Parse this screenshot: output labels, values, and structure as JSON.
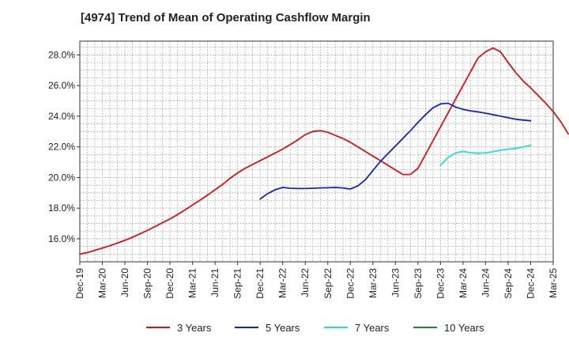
{
  "chart_data": {
    "type": "line",
    "title": "[4974]  Trend of Mean of Operating Cashflow Margin",
    "xlabel": "",
    "ylabel": "",
    "x_ticks": [
      "Dec-19",
      "Mar-20",
      "Jun-20",
      "Sep-20",
      "Dec-20",
      "Mar-21",
      "Jun-21",
      "Sep-21",
      "Dec-21",
      "Mar-22",
      "Jun-22",
      "Sep-22",
      "Dec-22",
      "Mar-23",
      "Jun-23",
      "Sep-23",
      "Dec-23",
      "Mar-24",
      "Jun-24",
      "Sep-24",
      "Dec-24",
      "Mar-25"
    ],
    "y_ticks": [
      "16.0%",
      "18.0%",
      "20.0%",
      "22.0%",
      "24.0%",
      "26.0%",
      "28.0%"
    ],
    "ylim": [
      14.5,
      28.9
    ],
    "grid": true,
    "legend_position": "bottom",
    "series": [
      {
        "name": "3 Years",
        "color": "#dd1111",
        "values": [
          [
            "Dec-19",
            15.0
          ],
          [
            "Jan-20",
            15.1
          ],
          [
            "Feb-20",
            15.25
          ],
          [
            "Mar-20",
            15.4
          ],
          [
            "Apr-20",
            15.55
          ],
          [
            "May-20",
            15.72
          ],
          [
            "Jun-20",
            15.9
          ],
          [
            "Jul-20",
            16.1
          ],
          [
            "Aug-20",
            16.32
          ],
          [
            "Sep-20",
            16.55
          ],
          [
            "Oct-20",
            16.8
          ],
          [
            "Nov-20",
            17.05
          ],
          [
            "Dec-20",
            17.3
          ],
          [
            "Jan-21",
            17.58
          ],
          [
            "Feb-21",
            17.88
          ],
          [
            "Mar-21",
            18.2
          ],
          [
            "Apr-21",
            18.52
          ],
          [
            "May-21",
            18.85
          ],
          [
            "Jun-21",
            19.2
          ],
          [
            "Jul-21",
            19.55
          ],
          [
            "Aug-21",
            19.95
          ],
          [
            "Sep-21",
            20.3
          ],
          [
            "Oct-21",
            20.6
          ],
          [
            "Nov-21",
            20.85
          ],
          [
            "Dec-21",
            21.1
          ],
          [
            "Jan-22",
            21.35
          ],
          [
            "Feb-22",
            21.6
          ],
          [
            "Mar-22",
            21.85
          ],
          [
            "Apr-22",
            22.15
          ],
          [
            "May-22",
            22.45
          ],
          [
            "Jun-22",
            22.8
          ],
          [
            "Jul-22",
            23.0
          ],
          [
            "Aug-22",
            23.05
          ],
          [
            "Sep-22",
            22.95
          ],
          [
            "Oct-22",
            22.75
          ],
          [
            "Nov-22",
            22.55
          ],
          [
            "Dec-22",
            22.3
          ],
          [
            "Jan-23",
            22.0
          ],
          [
            "Feb-23",
            21.7
          ],
          [
            "Mar-23",
            21.4
          ],
          [
            "Apr-23",
            21.1
          ],
          [
            "May-23",
            20.8
          ],
          [
            "Jun-23",
            20.5
          ],
          [
            "Jul-23",
            20.2
          ],
          [
            "Aug-23",
            20.2
          ],
          [
            "Sep-23",
            20.6
          ],
          [
            "Oct-23",
            21.5
          ],
          [
            "Nov-23",
            22.4
          ],
          [
            "Dec-23",
            23.3
          ],
          [
            "Jan-24",
            24.2
          ],
          [
            "Feb-24",
            25.1
          ],
          [
            "Mar-24",
            26.0
          ],
          [
            "Apr-24",
            26.9
          ],
          [
            "May-24",
            27.8
          ],
          [
            "Jun-24",
            28.2
          ],
          [
            "Jul-24",
            28.45
          ],
          [
            "Aug-24",
            28.2
          ],
          [
            "Sep-24",
            27.5
          ],
          [
            "Oct-24",
            26.85
          ],
          [
            "Nov-24",
            26.3
          ],
          [
            "Dec-24",
            25.85
          ],
          [
            "Jan-25",
            25.35
          ],
          [
            "Feb-25",
            24.85
          ],
          [
            "Mar-25",
            24.3
          ],
          [
            "Apr-25",
            23.65
          ],
          [
            "May-25",
            22.85
          ]
        ]
      },
      {
        "name": "5 Years",
        "color": "#1122cc",
        "values": [
          [
            "Dec-21",
            18.6
          ],
          [
            "Jan-22",
            18.95
          ],
          [
            "Feb-22",
            19.2
          ],
          [
            "Mar-22",
            19.35
          ],
          [
            "Apr-22",
            19.3
          ],
          [
            "May-22",
            19.28
          ],
          [
            "Jun-22",
            19.28
          ],
          [
            "Jul-22",
            19.3
          ],
          [
            "Aug-22",
            19.32
          ],
          [
            "Sep-22",
            19.33
          ],
          [
            "Oct-22",
            19.35
          ],
          [
            "Nov-22",
            19.32
          ],
          [
            "Dec-22",
            19.25
          ],
          [
            "Jan-23",
            19.45
          ],
          [
            "Feb-23",
            19.85
          ],
          [
            "Mar-23",
            20.45
          ],
          [
            "Apr-23",
            21.05
          ],
          [
            "May-23",
            21.55
          ],
          [
            "Jun-23",
            22.05
          ],
          [
            "Jul-23",
            22.55
          ],
          [
            "Aug-23",
            23.05
          ],
          [
            "Sep-23",
            23.6
          ],
          [
            "Oct-23",
            24.1
          ],
          [
            "Nov-23",
            24.55
          ],
          [
            "Dec-23",
            24.8
          ],
          [
            "Jan-24",
            24.85
          ],
          [
            "Feb-24",
            24.6
          ],
          [
            "Mar-24",
            24.45
          ],
          [
            "Apr-24",
            24.35
          ],
          [
            "May-24",
            24.28
          ],
          [
            "Jun-24",
            24.2
          ],
          [
            "Jul-24",
            24.1
          ],
          [
            "Aug-24",
            24.0
          ],
          [
            "Sep-24",
            23.9
          ],
          [
            "Oct-24",
            23.8
          ],
          [
            "Nov-24",
            23.75
          ],
          [
            "Dec-24",
            23.7
          ]
        ]
      },
      {
        "name": "7 Years",
        "color": "#22dddd",
        "values": [
          [
            "Dec-23",
            20.8
          ],
          [
            "Jan-24",
            21.3
          ],
          [
            "Feb-24",
            21.6
          ],
          [
            "Mar-24",
            21.7
          ],
          [
            "Apr-24",
            21.62
          ],
          [
            "May-24",
            21.58
          ],
          [
            "Jun-24",
            21.6
          ],
          [
            "Jul-24",
            21.68
          ],
          [
            "Aug-24",
            21.78
          ],
          [
            "Sep-24",
            21.85
          ],
          [
            "Oct-24",
            21.9
          ],
          [
            "Nov-24",
            22.0
          ],
          [
            "Dec-24",
            22.1
          ]
        ]
      },
      {
        "name": "10 Years",
        "color": "#228822",
        "values": []
      }
    ]
  }
}
